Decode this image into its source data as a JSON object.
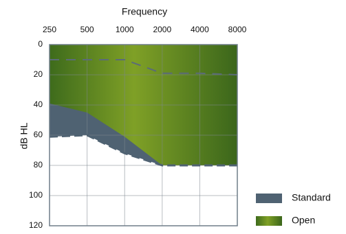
{
  "chart_data": {
    "type": "area",
    "xlabel": "Frequency",
    "ylabel": "dB HL",
    "x": [
      250,
      500,
      1000,
      2000,
      4000,
      8000
    ],
    "xlim": [
      250,
      8000
    ],
    "xticks": [
      250,
      500,
      1000,
      2000,
      4000,
      8000
    ],
    "xscale": "log",
    "xaxis_position": "top",
    "ylim": [
      0,
      120
    ],
    "yticks": [
      0,
      20,
      40,
      60,
      80,
      100,
      120
    ],
    "y_inverted": true,
    "grid": true,
    "legend": "lower right",
    "series": [
      {
        "name": "Standard",
        "color": "#4f6272",
        "values": [
          61,
          60,
          72,
          80,
          80,
          80
        ]
      },
      {
        "name": "Open",
        "color": "#7fa026",
        "values": [
          39,
          45,
          61,
          80,
          80,
          80
        ]
      }
    ],
    "reference_line": {
      "color": "#5b6b79",
      "values": [
        10,
        10,
        10,
        19,
        19,
        20
      ]
    }
  }
}
